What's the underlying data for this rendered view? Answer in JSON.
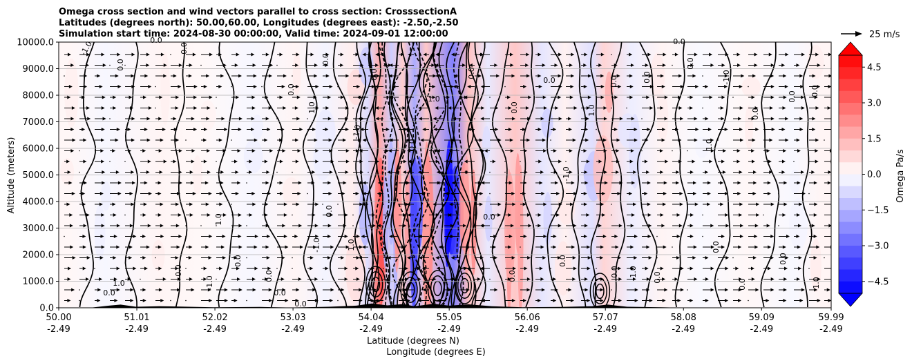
{
  "chart_data": {
    "type": "heatmap",
    "title_lines": [
      "Omega cross section and wind vectors parallel to cross section: CrosssectionA",
      "Latitudes (degrees north): 50.00,60.00, Longitudes (degrees east): -2.50,-2.50",
      "Simulation start time: 2024-08-30 00:00:00, Valid time: 2024-09-01 12:00:00"
    ],
    "xlabel_lines": [
      "Latitude (degrees N)",
      "Longitude (degrees E)"
    ],
    "ylabel": "Altitude (meters)",
    "colorbar_label": "Omega Pa/s",
    "xlim": [
      50.0,
      59.99
    ],
    "ylim": [
      0,
      10000
    ],
    "x_ticks": [
      {
        "lat": "50.00",
        "lon": "-2.49"
      },
      {
        "lat": "51.01",
        "lon": "-2.49"
      },
      {
        "lat": "52.02",
        "lon": "-2.49"
      },
      {
        "lat": "53.03",
        "lon": "-2.49"
      },
      {
        "lat": "54.04",
        "lon": "-2.49"
      },
      {
        "lat": "55.05",
        "lon": "-2.49"
      },
      {
        "lat": "56.06",
        "lon": "-2.49"
      },
      {
        "lat": "57.07",
        "lon": "-2.49"
      },
      {
        "lat": "58.08",
        "lon": "-2.49"
      },
      {
        "lat": "59.09",
        "lon": "-2.49"
      },
      {
        "lat": "59.99",
        "lon": "-2.49"
      }
    ],
    "y_ticks": [
      "0.0",
      "1000.0",
      "2000.0",
      "3000.0",
      "4000.0",
      "5000.0",
      "6000.0",
      "7000.0",
      "8000.0",
      "9000.0",
      "10000.0"
    ],
    "y_tick_values": [
      0,
      1000,
      2000,
      3000,
      4000,
      5000,
      6000,
      7000,
      8000,
      9000,
      10000
    ],
    "grid": "horizontal",
    "colorbar": {
      "min": -5.0,
      "max": 5.0,
      "step": 0.5,
      "ticks": [
        "4.5",
        "3.0",
        "1.5",
        "0.0",
        "−1.5",
        "−3.0",
        "−4.5"
      ],
      "tick_values": [
        4.5,
        3.0,
        1.5,
        0.0,
        -1.5,
        -3.0,
        -4.5
      ],
      "extend": "both",
      "colormap": "bwr"
    },
    "vector_key": {
      "label": "25 m/s",
      "speed": 25
    },
    "contour_labels": [
      "0.0",
      "-1.0",
      "1.0"
    ],
    "omega_columns": [
      {
        "lat": 50.15,
        "value": 0.3
      },
      {
        "lat": 50.6,
        "value": -0.3
      },
      {
        "lat": 51.3,
        "value": 0.35
      },
      {
        "lat": 51.85,
        "value": 0.25
      },
      {
        "lat": 52.5,
        "value": -0.3
      },
      {
        "lat": 53.05,
        "value": 0.35
      },
      {
        "lat": 53.45,
        "value": -0.4
      },
      {
        "lat": 53.8,
        "value": 0.6
      },
      {
        "lat": 54.0,
        "value": -1.2
      },
      {
        "lat": 54.15,
        "value": 3.0
      },
      {
        "lat": 54.3,
        "value": -1.8
      },
      {
        "lat": 54.45,
        "value": 1.8
      },
      {
        "lat": 54.6,
        "value": -3.0
      },
      {
        "lat": 54.75,
        "value": 2.0
      },
      {
        "lat": 55.1,
        "value": -4.5
      },
      {
        "lat": 55.3,
        "value": 2.2
      },
      {
        "lat": 55.55,
        "value": -0.8
      },
      {
        "lat": 55.9,
        "value": 2.0
      },
      {
        "lat": 56.25,
        "value": -0.9
      },
      {
        "lat": 56.55,
        "value": 0.5
      },
      {
        "lat": 56.9,
        "value": -1.1
      },
      {
        "lat": 57.05,
        "value": 1.5
      },
      {
        "lat": 57.4,
        "value": -0.6
      },
      {
        "lat": 57.8,
        "value": 0.4
      },
      {
        "lat": 58.3,
        "value": -0.2
      },
      {
        "lat": 58.9,
        "value": 0.3
      },
      {
        "lat": 59.5,
        "value": -0.25
      },
      {
        "lat": 59.85,
        "value": 0.35
      }
    ]
  }
}
